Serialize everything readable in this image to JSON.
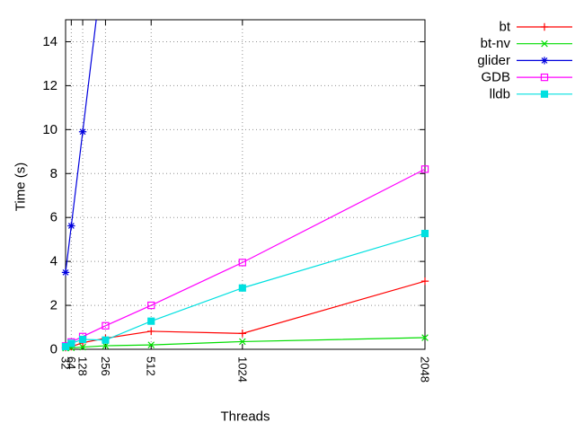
{
  "chart_data": {
    "type": "line",
    "title": "",
    "xlabel": "Threads",
    "ylabel": "Time (s)",
    "x_scale": "linear",
    "xlim": [
      32,
      2048
    ],
    "ylim": [
      0,
      15
    ],
    "x_ticks": [
      32,
      64,
      128,
      256,
      512,
      1024,
      2048
    ],
    "y_ticks": [
      0,
      2,
      4,
      6,
      8,
      10,
      12,
      14
    ],
    "grid": true,
    "grid_style": "dotted",
    "legend_position": "top-right-outside",
    "x": [
      32,
      64,
      128,
      256,
      512,
      1024,
      2048
    ],
    "series": [
      {
        "name": "bt",
        "color": "#ff0000",
        "marker": "plus",
        "values": [
          0.08,
          0.12,
          0.3,
          0.5,
          0.82,
          0.72,
          3.1
        ]
      },
      {
        "name": "bt-nv",
        "color": "#00dd00",
        "marker": "cross",
        "values": [
          0.05,
          0.07,
          0.1,
          0.16,
          0.2,
          0.35,
          0.53
        ]
      },
      {
        "name": "glider",
        "color": "#0000dd",
        "marker": "asterisk",
        "values": [
          3.5,
          5.62,
          9.9,
          18.5,
          null,
          null,
          null
        ]
      },
      {
        "name": "GDB",
        "color": "#ff00ff",
        "marker": "open-square",
        "values": [
          0.15,
          0.33,
          0.58,
          1.07,
          2.0,
          3.95,
          8.2
        ]
      },
      {
        "name": "lldb",
        "color": "#00e0e0",
        "marker": "filled-square",
        "values": [
          0.12,
          0.27,
          0.45,
          0.42,
          1.28,
          2.79,
          5.27
        ]
      }
    ],
    "frame_color": "#000000",
    "grid_color": "#909090",
    "text_color": "#000000"
  }
}
